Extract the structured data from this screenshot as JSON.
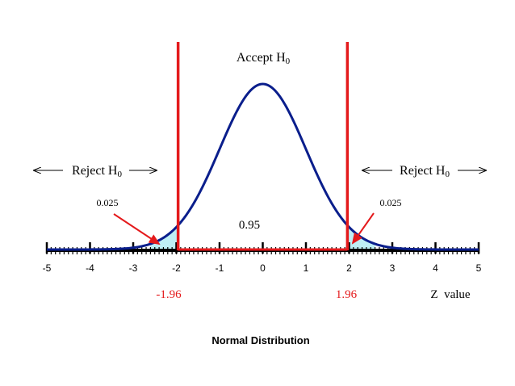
{
  "chart_data": {
    "type": "line",
    "title": "Normal Distribution",
    "xlabel": "Z  value",
    "x_range": [
      -5,
      5
    ],
    "x_ticks": [
      "-5",
      "-4",
      "-3",
      "-2",
      "-1",
      "0",
      "1",
      "2",
      "3",
      "4",
      "5"
    ],
    "series": [
      {
        "name": "",
        "function": "standard normal pdf",
        "mean": 0,
        "sd": 1
      }
    ],
    "critical_values": [
      -1.96,
      1.96
    ],
    "critical_labels": [
      "-1.96",
      "1.96"
    ],
    "region_labels": {
      "accept_text": "Accept H",
      "accept_sub": "0",
      "reject_text": "Reject H",
      "reject_sub": "0",
      "center_area": "0.95",
      "left_tail_area": "0.025",
      "right_tail_area": "0.025"
    },
    "colors": {
      "curve": "#0a1e8c",
      "critical": "#e41a1c",
      "tail_fill": "#bfeff5",
      "axis": "#000000"
    }
  }
}
